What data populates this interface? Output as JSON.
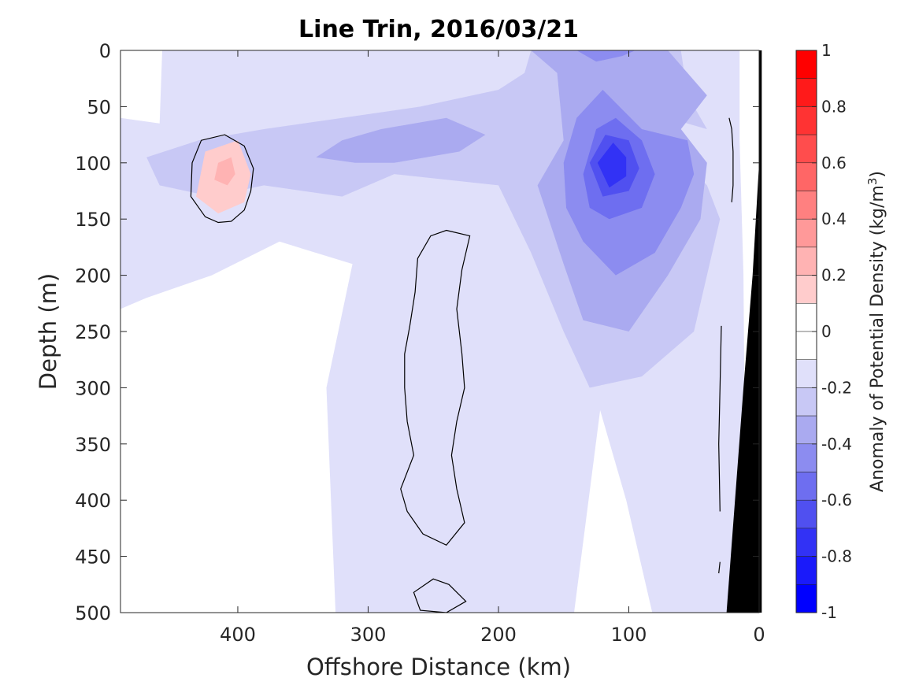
{
  "chart_data": {
    "type": "heatmap",
    "title": "Line Trin, 2016/03/21",
    "xlabel": "Offshore Distance (km)",
    "ylabel": "Depth (m)",
    "xlim": [
      490,
      0
    ],
    "ylim": [
      0,
      500
    ],
    "x_reversed": true,
    "y_reversed": true,
    "xticks": [
      400,
      300,
      200,
      100,
      0
    ],
    "yticks": [
      0,
      50,
      100,
      150,
      200,
      250,
      300,
      350,
      400,
      450,
      500
    ],
    "colorbar": {
      "label": "Anomaly of Potential Density (kg/m",
      "label_superscript": "3",
      "label_suffix": ")",
      "range": [
        -1,
        1
      ],
      "ticks": [
        1,
        0.8,
        0.6,
        0.4,
        0.2,
        0,
        -0.2,
        -0.4,
        -0.6,
        -0.8,
        -1
      ],
      "levels": [
        {
          "lo": 0.9,
          "hi": 1.0,
          "color": "#ff0000"
        },
        {
          "lo": 0.8,
          "hi": 0.9,
          "color": "#ff1a1a"
        },
        {
          "lo": 0.7,
          "hi": 0.8,
          "color": "#ff3333"
        },
        {
          "lo": 0.6,
          "hi": 0.7,
          "color": "#ff4d4d"
        },
        {
          "lo": 0.5,
          "hi": 0.6,
          "color": "#ff6666"
        },
        {
          "lo": 0.4,
          "hi": 0.5,
          "color": "#ff8080"
        },
        {
          "lo": 0.3,
          "hi": 0.4,
          "color": "#ff9999"
        },
        {
          "lo": 0.2,
          "hi": 0.3,
          "color": "#ffb3b3"
        },
        {
          "lo": 0.1,
          "hi": 0.2,
          "color": "#ffcccc"
        },
        {
          "lo": 0.0,
          "hi": 0.1,
          "color": "#ffffff"
        },
        {
          "lo": -0.1,
          "hi": 0.0,
          "color": "#ffffff"
        },
        {
          "lo": -0.2,
          "hi": -0.1,
          "color": "#e0e0fa"
        },
        {
          "lo": -0.3,
          "hi": -0.2,
          "color": "#c8c8f5"
        },
        {
          "lo": -0.4,
          "hi": -0.3,
          "color": "#aaaaf0"
        },
        {
          "lo": -0.5,
          "hi": -0.4,
          "color": "#8c8cf0"
        },
        {
          "lo": -0.6,
          "hi": -0.5,
          "color": "#6e6ef0"
        },
        {
          "lo": -0.7,
          "hi": -0.6,
          "color": "#5050f0"
        },
        {
          "lo": -0.8,
          "hi": -0.7,
          "color": "#3232f5"
        },
        {
          "lo": -0.9,
          "hi": -0.8,
          "color": "#1a1afa"
        },
        {
          "lo": -1.0,
          "hi": -0.9,
          "color": "#0000ff"
        }
      ]
    },
    "regions": [
      {
        "level": -0.15,
        "points": [
          [
            458,
            0
          ],
          [
            15,
            0
          ],
          [
            15,
            80
          ],
          [
            12,
            200
          ],
          [
            10,
            500
          ],
          [
            82,
            500
          ],
          [
            102,
            400
          ],
          [
            122,
            320
          ],
          [
            142,
            500
          ],
          [
            325,
            500
          ],
          [
            332,
            300
          ],
          [
            312,
            190
          ],
          [
            368,
            170
          ],
          [
            420,
            200
          ],
          [
            470,
            220
          ],
          [
            490,
            230
          ],
          [
            490,
            60
          ],
          [
            460,
            65
          ]
        ]
      },
      {
        "level": -0.25,
        "points": [
          [
            470,
            95
          ],
          [
            430,
            80
          ],
          [
            380,
            70
          ],
          [
            320,
            60
          ],
          [
            260,
            50
          ],
          [
            200,
            35
          ],
          [
            180,
            20
          ],
          [
            175,
            0
          ],
          [
            60,
            0
          ],
          [
            55,
            40
          ],
          [
            40,
            70
          ],
          [
            70,
            60
          ],
          [
            95,
            45
          ],
          [
            105,
            70
          ],
          [
            90,
            80
          ],
          [
            60,
            95
          ],
          [
            40,
            120
          ],
          [
            30,
            150
          ],
          [
            50,
            250
          ],
          [
            90,
            290
          ],
          [
            130,
            300
          ],
          [
            150,
            250
          ],
          [
            175,
            180
          ],
          [
            200,
            120
          ],
          [
            280,
            110
          ],
          [
            320,
            130
          ],
          [
            380,
            120
          ],
          [
            420,
            130
          ],
          [
            460,
            120
          ]
        ]
      },
      {
        "level": -0.35,
        "points": [
          [
            340,
            95
          ],
          [
            320,
            80
          ],
          [
            290,
            70
          ],
          [
            240,
            60
          ],
          [
            210,
            75
          ],
          [
            230,
            90
          ],
          [
            280,
            100
          ],
          [
            310,
            100
          ]
        ]
      },
      {
        "level": -0.35,
        "points": [
          [
            155,
            20
          ],
          [
            175,
            0
          ],
          [
            70,
            0
          ],
          [
            40,
            40
          ],
          [
            60,
            70
          ],
          [
            40,
            100
          ],
          [
            45,
            150
          ],
          [
            70,
            200
          ],
          [
            100,
            250
          ],
          [
            135,
            240
          ],
          [
            150,
            190
          ],
          [
            170,
            120
          ],
          [
            150,
            80
          ]
        ]
      },
      {
        "level": -0.45,
        "points": [
          [
            150,
            100
          ],
          [
            140,
            60
          ],
          [
            120,
            35
          ],
          [
            90,
            70
          ],
          [
            55,
            80
          ],
          [
            50,
            110
          ],
          [
            60,
            140
          ],
          [
            80,
            180
          ],
          [
            110,
            200
          ],
          [
            135,
            170
          ],
          [
            148,
            140
          ]
        ]
      },
      {
        "level": -0.55,
        "points": [
          [
            135,
            110
          ],
          [
            125,
            70
          ],
          [
            110,
            60
          ],
          [
            90,
            80
          ],
          [
            80,
            110
          ],
          [
            90,
            140
          ],
          [
            115,
            150
          ],
          [
            130,
            140
          ]
        ]
      },
      {
        "level": -0.65,
        "points": [
          [
            130,
            100
          ],
          [
            118,
            75
          ],
          [
            100,
            80
          ],
          [
            92,
            105
          ],
          [
            100,
            125
          ],
          [
            120,
            130
          ]
        ]
      },
      {
        "level": -0.75,
        "points": [
          [
            124,
            100
          ],
          [
            112,
            82
          ],
          [
            102,
            95
          ],
          [
            102,
            112
          ],
          [
            115,
            122
          ]
        ]
      },
      {
        "level": -0.45,
        "points": [
          [
            140,
            0
          ],
          [
            125,
            10
          ],
          [
            105,
            5
          ],
          [
            95,
            0
          ]
        ]
      },
      {
        "level": 0.15,
        "points": [
          [
            425,
            90
          ],
          [
            400,
            80
          ],
          [
            390,
            110
          ],
          [
            395,
            135
          ],
          [
            415,
            145
          ],
          [
            432,
            130
          ]
        ]
      },
      {
        "level": 0.25,
        "points": [
          [
            415,
            100
          ],
          [
            405,
            95
          ],
          [
            402,
            110
          ],
          [
            408,
            120
          ],
          [
            418,
            115
          ]
        ]
      }
    ],
    "contour_zero": [
      [
        [
          435,
          100
        ],
        [
          428,
          80
        ],
        [
          410,
          75
        ],
        [
          395,
          85
        ],
        [
          388,
          105
        ],
        [
          390,
          125
        ],
        [
          395,
          142
        ],
        [
          405,
          152
        ],
        [
          415,
          153
        ],
        [
          425,
          148
        ],
        [
          436,
          130
        ]
      ],
      [
        [
          240,
          160
        ],
        [
          222,
          165
        ],
        [
          228,
          195
        ],
        [
          232,
          230
        ],
        [
          228,
          270
        ],
        [
          226,
          300
        ],
        [
          232,
          330
        ],
        [
          236,
          360
        ],
        [
          232,
          390
        ],
        [
          226,
          420
        ],
        [
          240,
          440
        ],
        [
          258,
          430
        ],
        [
          270,
          410
        ],
        [
          275,
          390
        ],
        [
          265,
          360
        ],
        [
          270,
          330
        ],
        [
          272,
          300
        ],
        [
          272,
          270
        ],
        [
          268,
          245
        ],
        [
          264,
          215
        ],
        [
          262,
          185
        ],
        [
          252,
          165
        ]
      ],
      [
        [
          250,
          470
        ],
        [
          238,
          475
        ],
        [
          225,
          490
        ],
        [
          240,
          500
        ],
        [
          260,
          498
        ],
        [
          265,
          482
        ]
      ],
      [
        [
          23,
          60
        ],
        [
          21,
          70
        ],
        [
          20,
          90
        ],
        [
          20,
          120
        ],
        [
          21,
          135
        ]
      ],
      [
        [
          29,
          245
        ],
        [
          30,
          300
        ],
        [
          31,
          350
        ],
        [
          30,
          410
        ]
      ],
      [
        [
          30,
          455
        ],
        [
          31,
          465
        ]
      ]
    ],
    "land_mask": [
      [
        0,
        0
      ],
      [
        -2,
        0
      ],
      [
        -2,
        500
      ],
      [
        25,
        500
      ],
      [
        12,
        300
      ],
      [
        5,
        200
      ],
      [
        0,
        100
      ]
    ]
  }
}
